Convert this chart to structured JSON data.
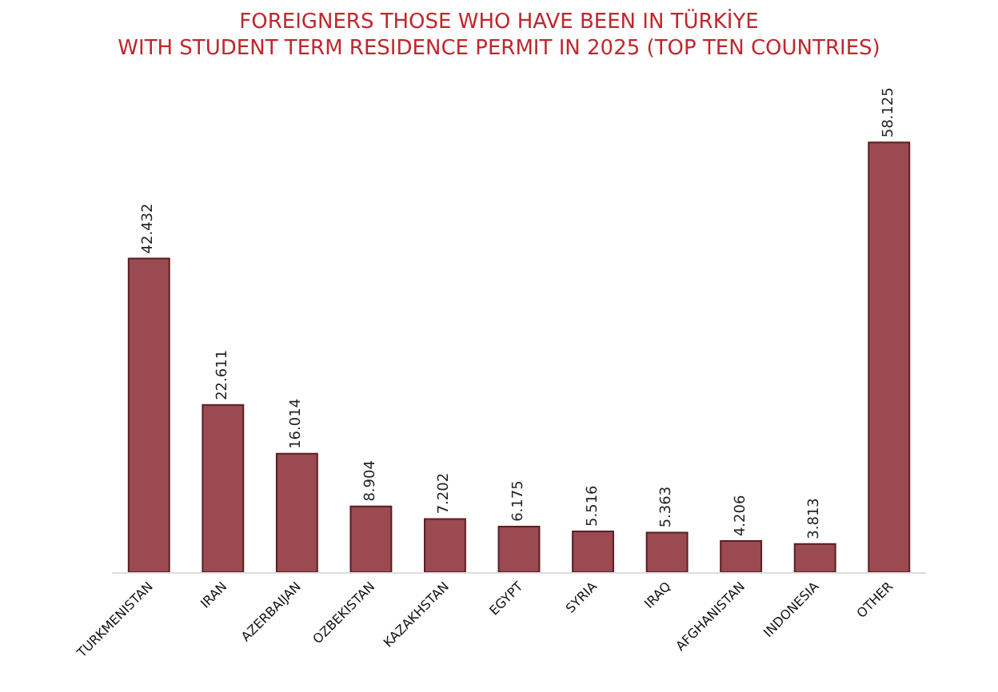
{
  "chart_data": {
    "type": "bar",
    "title": "FOREIGNERS THOSE WHO HAVE BEEN IN TÜRKİYE\nWITH STUDENT TERM RESIDENCE PERMIT IN 2025 (TOP TEN COUNTRIES)",
    "categories": [
      "TURKMENISTAN",
      "IRAN",
      "AZERBAIJAN",
      "OZBEKISTAN",
      "KAZAKHSTAN",
      "EGYPT",
      "SYRIA",
      "IRAQ",
      "AFGHANISTAN",
      "INDONESIA",
      "OTHER"
    ],
    "values": [
      42432,
      22611,
      16014,
      8904,
      7202,
      6175,
      5516,
      5363,
      4206,
      3813,
      58125
    ],
    "value_labels": [
      "42.432",
      "22.611",
      "16.014",
      "8.904",
      "7.202",
      "6.175",
      "5.516",
      "5.363",
      "4.206",
      "3.813",
      "58.125"
    ],
    "color": "#9a4a50",
    "grid": false,
    "legend": false,
    "tick_labels": "x"
  }
}
